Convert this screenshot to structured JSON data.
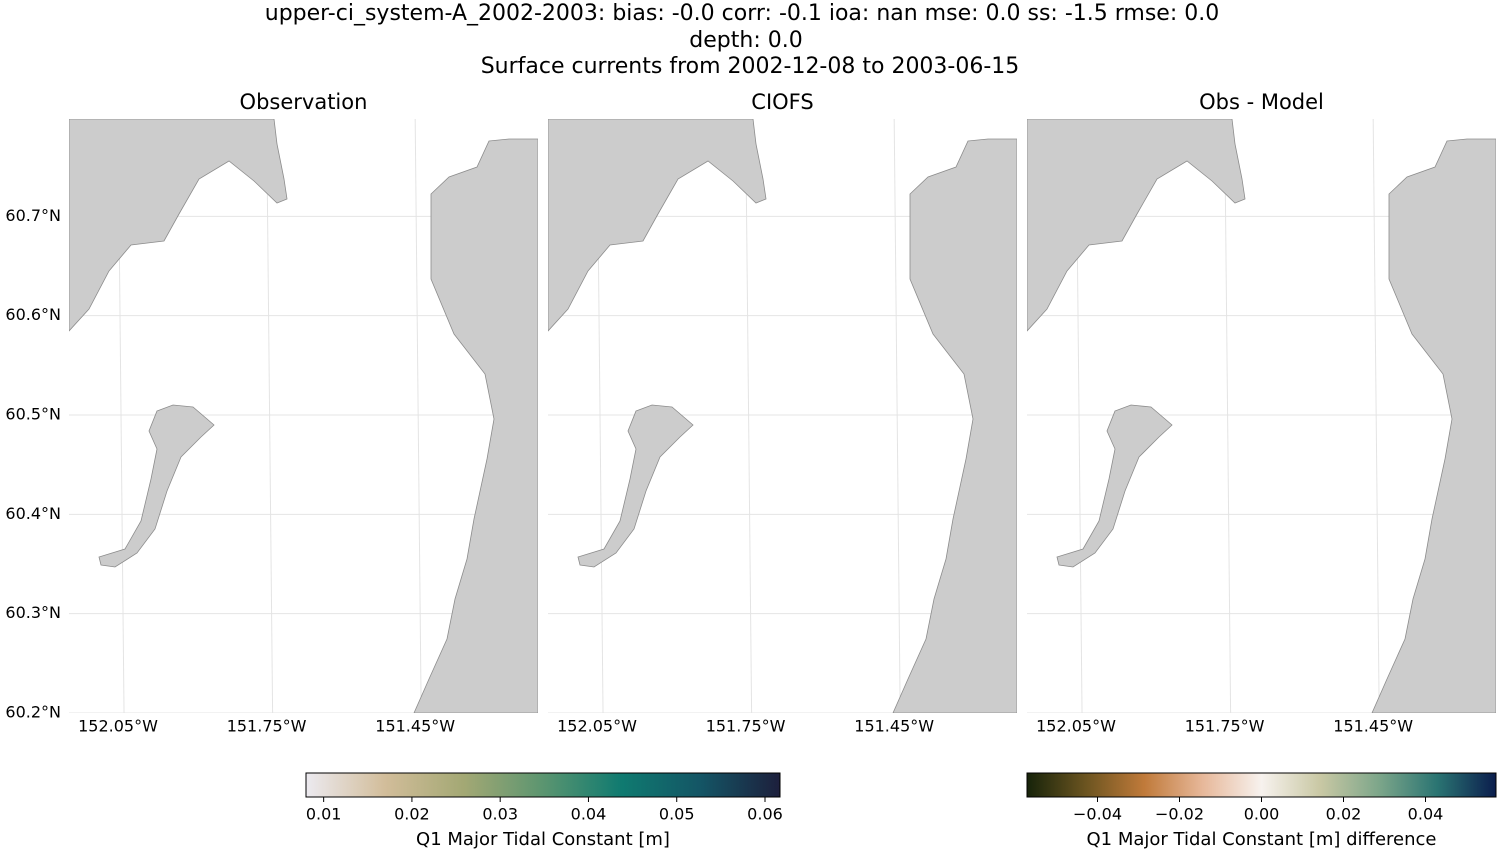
{
  "title_lines": [
    "upper-ci_system-A_2002-2003: bias: -0.0  corr: -0.1  ioa: nan  mse: 0.0  ss: -1.5  rmse: 0.0",
    "depth: 0.0",
    "Surface currents from 2002-12-08 to 2003-06-15"
  ],
  "panels": [
    {
      "title": "Observation"
    },
    {
      "title": "CIOFS"
    },
    {
      "title": "Obs - Model"
    }
  ],
  "xlim": [
    -152.149,
    -151.202
  ],
  "xticks": [
    {
      "value": -152.05,
      "label": "152.05°W"
    },
    {
      "value": -151.75,
      "label": "151.75°W"
    },
    {
      "value": -151.45,
      "label": "151.45°W"
    }
  ],
  "ylim": [
    60.2,
    60.798
  ],
  "yticks": [
    {
      "value": 60.2,
      "label": "60.2°N"
    },
    {
      "value": 60.3,
      "label": "60.3°N"
    },
    {
      "value": 60.4,
      "label": "60.4°N"
    },
    {
      "value": 60.5,
      "label": "60.5°N"
    },
    {
      "value": 60.6,
      "label": "60.6°N"
    },
    {
      "value": 60.7,
      "label": "60.7°N"
    }
  ],
  "colorbars": [
    {
      "label": "Q1 Major Tidal Constant [m]",
      "lim": [
        0.008,
        0.0617
      ],
      "ticks": [
        0.01,
        0.02,
        0.03,
        0.04,
        0.05,
        0.06
      ],
      "colors": [
        "#eceaf0",
        "#d2bd9a",
        "#a3a874",
        "#5b9570",
        "#0f7a70",
        "#145565",
        "#1d1f3c"
      ]
    },
    {
      "label": "Q1 Major Tidal Constant [m] difference",
      "lim": [
        -0.0572,
        0.0572
      ],
      "ticks": [
        {
          "value": -0.04,
          "label": "−0.04"
        },
        {
          "value": -0.02,
          "label": "−0.02"
        },
        {
          "value": 0,
          "label": "0.00"
        },
        0.02,
        0.04
      ],
      "colors": [
        "#16230a",
        "#6b5420",
        "#c07a3a",
        "#e7b89a",
        "#f7f2ee",
        "#c9c8a4",
        "#7da68a",
        "#2a7472",
        "#0b1d4d"
      ]
    }
  ]
}
